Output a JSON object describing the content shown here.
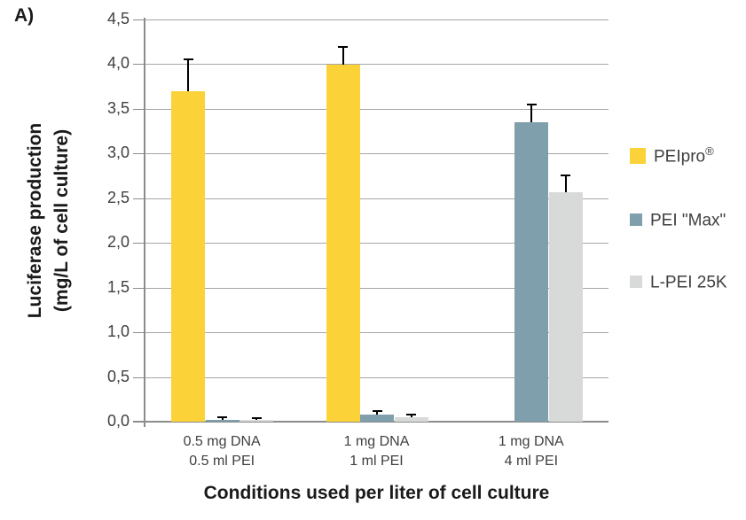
{
  "panel_label": "A)",
  "chart_data": {
    "type": "bar",
    "title": "",
    "xlabel": "Conditions used per liter of cell culture",
    "ylabel_lines": [
      "Luciferase production",
      "(mg/L of cell culture)"
    ],
    "ylim": [
      0,
      4.5
    ],
    "ytick_step": 0.5,
    "ytick_labels": [
      "0,0",
      "0,5",
      "1,0",
      "1,5",
      "2,0",
      "2,5",
      "3,0",
      "3,5",
      "4,0",
      "4,5"
    ],
    "decimal_separator": ",",
    "grid": true,
    "legend_position": "right",
    "categories": [
      {
        "line1": "0.5 mg DNA",
        "line2": "0.5 ml PEI"
      },
      {
        "line1": "1 mg DNA",
        "line2": "1 ml PEI"
      },
      {
        "line1": "1 mg DNA",
        "line2": "4 ml PEI"
      }
    ],
    "series": [
      {
        "name": "PEIpro",
        "name_suffix_sup": "®",
        "color": "#FBD338",
        "values": [
          3.7,
          3.99,
          null
        ],
        "errors_plus": [
          0.36,
          0.2,
          null
        ]
      },
      {
        "name": "PEI \"Max\"",
        "color": "#7E9FAB",
        "values": [
          0.02,
          0.08,
          3.35
        ],
        "errors_plus": [
          0.03,
          0.04,
          0.2
        ]
      },
      {
        "name": "L-PEI 25K",
        "color": "#D8D9D9",
        "values": [
          0.015,
          0.05,
          2.57
        ],
        "errors_plus": [
          0.02,
          0.03,
          0.19
        ]
      }
    ]
  },
  "colors": {
    "background": "#FFFFFF",
    "gridline": "#A6A6A6",
    "axis": "#8C8C8C",
    "tick_text": "#3F3F3F",
    "title_text": "#1A1A1A",
    "error_bar": "#000000"
  }
}
